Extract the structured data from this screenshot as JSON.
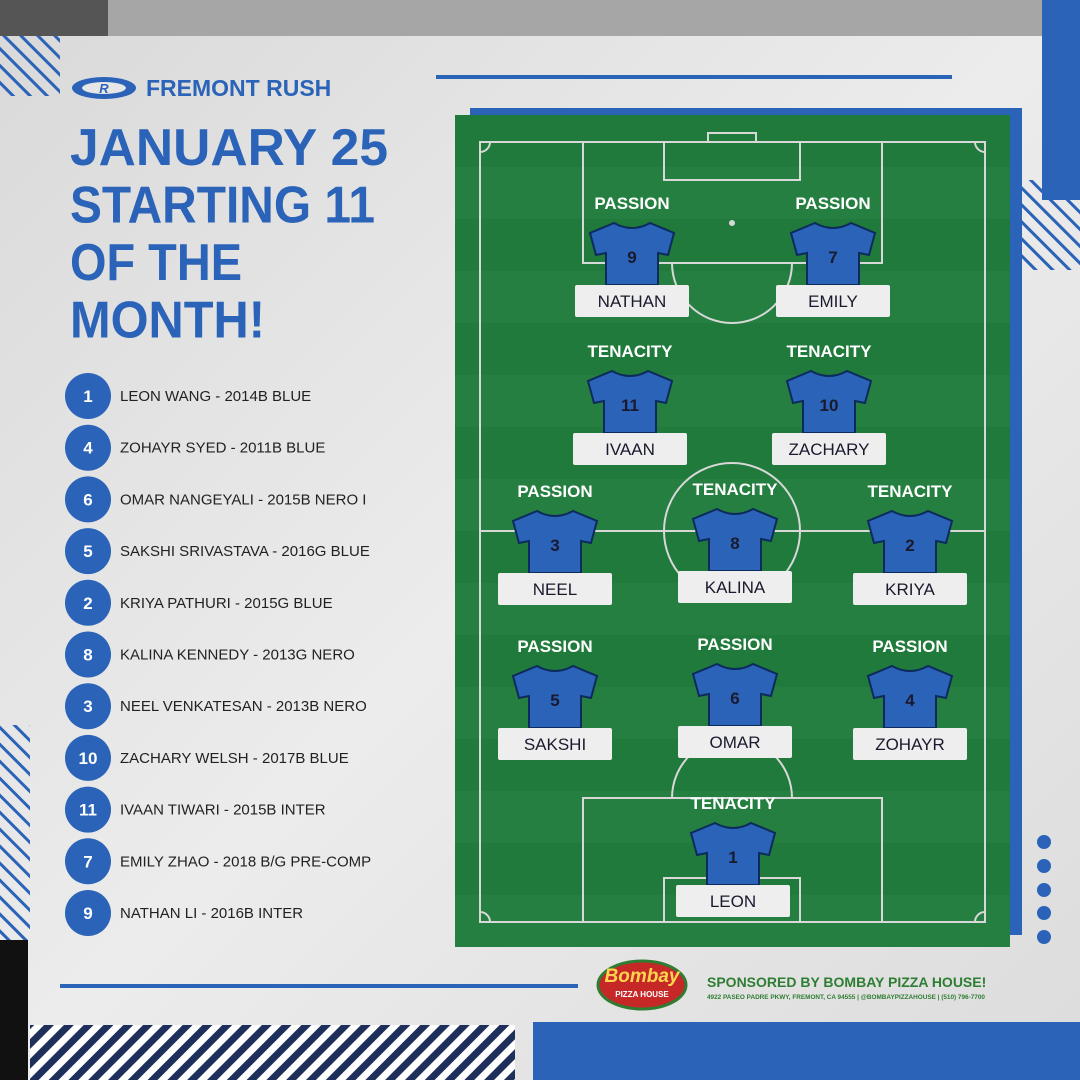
{
  "brand": "FREMONT RUSH",
  "title": [
    "JANUARY 25",
    "STARTING 11",
    "OF THE",
    "MONTH!"
  ],
  "roster": [
    {
      "number": "1",
      "text": "LEON WANG - 2014B BLUE"
    },
    {
      "number": "4",
      "text": "ZOHAYR SYED - 2011B BLUE"
    },
    {
      "number": "6",
      "text": "OMAR NANGEYALI - 2015B NERO I"
    },
    {
      "number": "5",
      "text": "SAKSHI SRIVASTAVA - 2016G BLUE"
    },
    {
      "number": "2",
      "text": "KRIYA PATHURI - 2015G BLUE"
    },
    {
      "number": "8",
      "text": "KALINA KENNEDY - 2013G NERO"
    },
    {
      "number": "3",
      "text": "NEEL VENKATESAN - 2013B NERO"
    },
    {
      "number": "10",
      "text": "ZACHARY WELSH - 2017B BLUE"
    },
    {
      "number": "11",
      "text": "IVAAN TIWARI - 2015B INTER"
    },
    {
      "number": "7",
      "text": "EMILY ZHAO - 2018 B/G PRE-COMP"
    },
    {
      "number": "9",
      "text": "NATHAN LI - 2016B INTER"
    }
  ],
  "players": [
    {
      "award": "PASSION",
      "number": "9",
      "name": "NATHAN"
    },
    {
      "award": "PASSION",
      "number": "7",
      "name": "EMILY"
    },
    {
      "award": "TENACITY",
      "number": "11",
      "name": "IVAAN"
    },
    {
      "award": "TENACITY",
      "number": "10",
      "name": "ZACHARY"
    },
    {
      "award": "PASSION",
      "number": "3",
      "name": "NEEL"
    },
    {
      "award": "TENACITY",
      "number": "8",
      "name": "KALINA"
    },
    {
      "award": "TENACITY",
      "number": "2",
      "name": "KRIYA"
    },
    {
      "award": "PASSION",
      "number": "5",
      "name": "SAKSHI"
    },
    {
      "award": "PASSION",
      "number": "6",
      "name": "OMAR"
    },
    {
      "award": "PASSION",
      "number": "4",
      "name": "ZOHAYR"
    },
    {
      "award": "TENACITY",
      "number": "1",
      "name": "LEON"
    }
  ],
  "sponsor": {
    "logo": "Bombay",
    "logo_sub": "PIZZA HOUSE",
    "title": "SPONSORED BY BOMBAY PIZZA HOUSE!",
    "details": "4922 PASEO PADRE PKWY, FREMONT, CA 94555 | @BOMBAYPIZZAHOUSE | (510) 796-7700"
  }
}
